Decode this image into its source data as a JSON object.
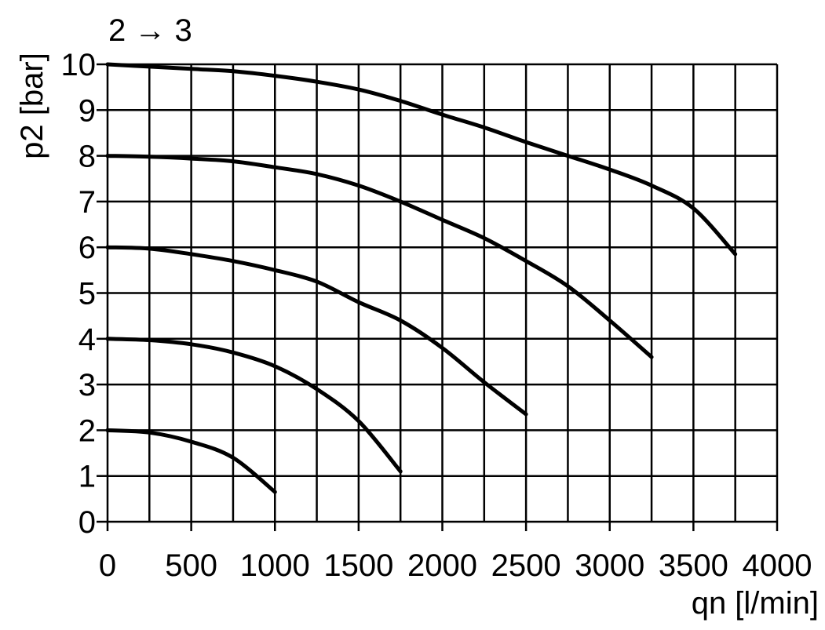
{
  "chart_data": {
    "type": "line",
    "title": "2 → 3",
    "xlabel": "qn [l/min]",
    "ylabel": "p2 [bar]",
    "xlim": [
      0,
      4000
    ],
    "ylim": [
      0,
      10
    ],
    "x_ticks": [
      0,
      500,
      1000,
      1500,
      2000,
      2500,
      3000,
      3500,
      4000
    ],
    "y_ticks": [
      0,
      1,
      2,
      3,
      4,
      5,
      6,
      7,
      8,
      9,
      10
    ],
    "grid": true,
    "line_color": "#000000",
    "series": [
      {
        "x": [
          0,
          250,
          500,
          750,
          1000
        ],
        "y": [
          2.0,
          1.95,
          1.75,
          1.4,
          0.65
        ]
      },
      {
        "x": [
          0,
          250,
          500,
          750,
          1000,
          1250,
          1500,
          1750
        ],
        "y": [
          4.0,
          3.97,
          3.88,
          3.7,
          3.4,
          2.9,
          2.2,
          1.1
        ]
      },
      {
        "x": [
          0,
          250,
          500,
          750,
          1000,
          1250,
          1500,
          1750,
          2000,
          2250,
          2500
        ],
        "y": [
          6.0,
          5.97,
          5.85,
          5.7,
          5.5,
          5.25,
          4.8,
          4.4,
          3.8,
          3.05,
          2.35
        ]
      },
      {
        "x": [
          0,
          250,
          500,
          750,
          1000,
          1250,
          1500,
          1750,
          2000,
          2250,
          2500,
          2750,
          3000,
          3250
        ],
        "y": [
          8.0,
          7.98,
          7.94,
          7.88,
          7.75,
          7.6,
          7.35,
          7.0,
          6.6,
          6.2,
          5.7,
          5.15,
          4.4,
          3.6
        ]
      },
      {
        "x": [
          0,
          250,
          500,
          750,
          1000,
          1250,
          1500,
          1750,
          2000,
          2250,
          2500,
          2750,
          3000,
          3250,
          3500,
          3750
        ],
        "y": [
          10.0,
          9.95,
          9.9,
          9.85,
          9.75,
          9.62,
          9.45,
          9.2,
          8.9,
          8.62,
          8.3,
          8.0,
          7.7,
          7.35,
          6.85,
          5.85
        ]
      }
    ]
  }
}
